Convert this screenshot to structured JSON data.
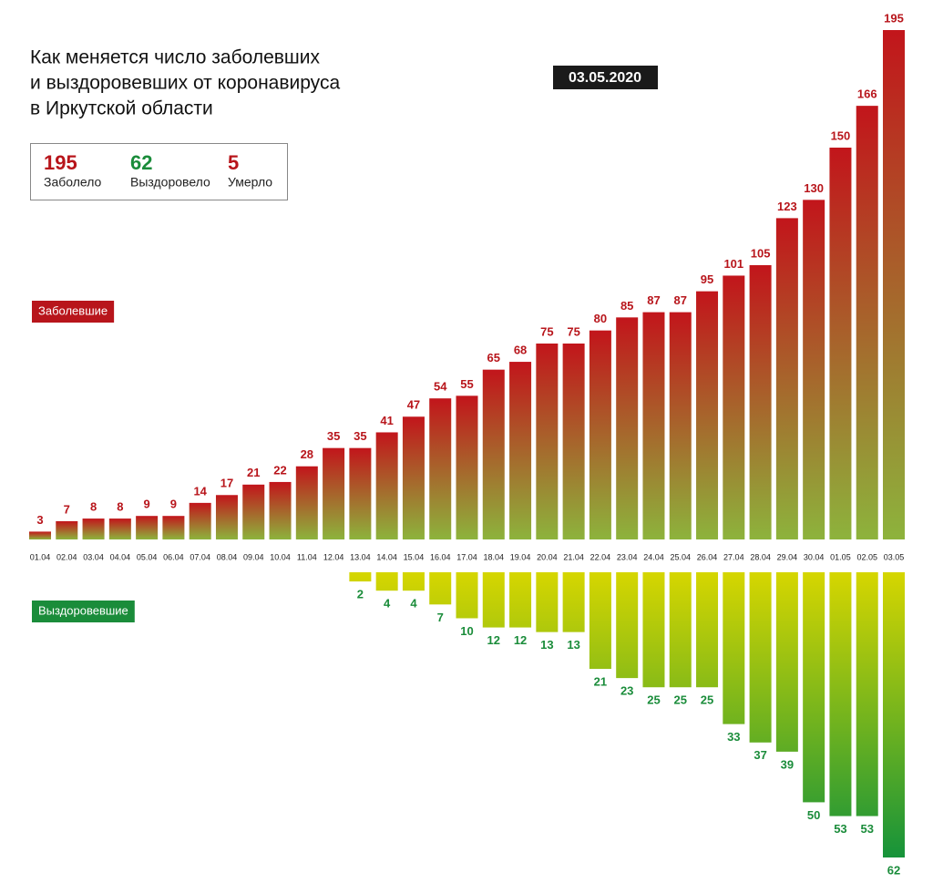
{
  "chart_data": {
    "type": "bar",
    "title": [
      "Как меняется число заболевших",
      "и выздоровевших от коронавируса",
      "в Иркутской области"
    ],
    "date": "03.05.2020",
    "summary": [
      {
        "value": "195",
        "label": "Заболело",
        "color": "#b8151b"
      },
      {
        "value": "62",
        "label": "Выздоровело",
        "color": "#1a8c3a"
      },
      {
        "value": "5",
        "label": "Умерло",
        "color": "#b8151b"
      }
    ],
    "categories": [
      "01.04",
      "02.04",
      "03.04",
      "04.04",
      "05.04",
      "06.04",
      "07.04",
      "08.04",
      "09.04",
      "10.04",
      "11.04",
      "12.04",
      "13.04",
      "14.04",
      "15.04",
      "16.04",
      "17.04",
      "18.04",
      "19.04",
      "20.04",
      "21.04",
      "22.04",
      "23.04",
      "24.04",
      "25.04",
      "26.04",
      "27.04",
      "28.04",
      "29.04",
      "30.04",
      "01.05",
      "02.05",
      "03.05"
    ],
    "series": [
      {
        "name": "Заболевшие",
        "color": [
          "#c2151b",
          "#8db33c"
        ],
        "label_color": "#b8151b",
        "values": [
          3,
          7,
          8,
          8,
          9,
          9,
          14,
          17,
          21,
          22,
          28,
          35,
          35,
          41,
          47,
          54,
          55,
          65,
          68,
          75,
          75,
          80,
          85,
          87,
          87,
          95,
          101,
          105,
          123,
          130,
          150,
          166,
          195
        ]
      },
      {
        "name": "Выздоровевшие",
        "color": [
          "#d6d600",
          "#16933a"
        ],
        "label_color": "#1a8c3a",
        "values": [
          null,
          null,
          null,
          null,
          null,
          null,
          null,
          null,
          null,
          null,
          null,
          null,
          2,
          4,
          4,
          7,
          10,
          12,
          12,
          13,
          13,
          21,
          23,
          25,
          25,
          25,
          33,
          37,
          39,
          50,
          53,
          53,
          62
        ]
      }
    ]
  }
}
